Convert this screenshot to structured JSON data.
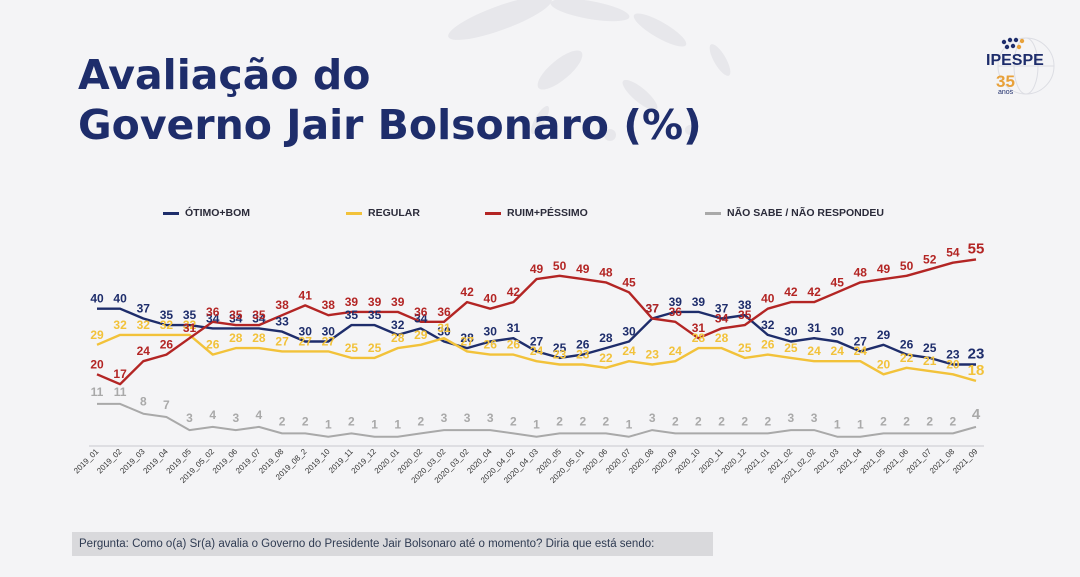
{
  "title": {
    "line1": "Avaliação do",
    "line2": "Governo Jair Bolsonaro (%)"
  },
  "logo": {
    "name": "IPESPE",
    "years": "35",
    "suffix": "anos"
  },
  "footer": {
    "question": "Pergunta: Como o(a) Sr(a) avalia o Governo do Presidente Jair Bolsonaro até o momento? Diria que está sendo:"
  },
  "colors": {
    "otimo_bom": "#1e2d6b",
    "regular": "#f2c23a",
    "ruim_pessimo": "#b32524",
    "nao_sabe": "#a9a9a9"
  },
  "chart_data": {
    "type": "line",
    "title": "",
    "xlabel": "",
    "ylabel": "",
    "ylim": [
      0,
      60
    ],
    "grid": false,
    "legend_position": "top",
    "x": [
      "2019_01",
      "2019_02",
      "2019_03",
      "2019_04",
      "2019_05",
      "2019_05_02",
      "2019_06",
      "2019_07",
      "2019_08",
      "2019_08_2",
      "2019_10",
      "2019_11",
      "2019_12",
      "2020_01",
      "2020_02",
      "2020_03_02",
      "2020_03_02",
      "2020_04",
      "2020_04_02",
      "2020_04_03",
      "2020_05",
      "2020_05_01",
      "2020_06",
      "2020_07",
      "2020_08",
      "2020_09",
      "2020_10",
      "2020_11",
      "2020_12",
      "2021_01",
      "2021_02",
      "2021_02_02",
      "2021_03",
      "2021_04",
      "2021_05",
      "2021_06",
      "2021_07",
      "2021_08",
      "2021_09"
    ],
    "series": [
      {
        "name": "ÓTIMO+BOM",
        "values": [
          40,
          40,
          37,
          35,
          35,
          34,
          34,
          34,
          33,
          30,
          30,
          35,
          35,
          32,
          34,
          30,
          28,
          30,
          31,
          27,
          25,
          26,
          28,
          30,
          37,
          39,
          39,
          37,
          38,
          32,
          30,
          31,
          30,
          27,
          29,
          26,
          25,
          23,
          23
        ]
      },
      {
        "name": "REGULAR",
        "values": [
          29,
          32,
          32,
          32,
          32,
          26,
          28,
          28,
          27,
          27,
          27,
          25,
          25,
          28,
          29,
          31,
          27,
          26,
          26,
          24,
          23,
          23,
          22,
          24,
          23,
          24,
          28,
          28,
          25,
          26,
          25,
          24,
          24,
          24,
          20,
          22,
          21,
          20,
          18
        ]
      },
      {
        "name": "RUIM+PÉSSIMO",
        "values": [
          20,
          17,
          24,
          26,
          31,
          36,
          35,
          35,
          38,
          41,
          38,
          39,
          39,
          39,
          36,
          36,
          42,
          40,
          42,
          49,
          50,
          49,
          48,
          45,
          37,
          36,
          31,
          34,
          35,
          40,
          42,
          42,
          45,
          48,
          49,
          50,
          52,
          54,
          55
        ]
      },
      {
        "name": "NÃO SABE / NÃO RESPONDEU",
        "values": [
          11,
          11,
          8,
          7,
          3,
          4,
          3,
          4,
          2,
          2,
          1,
          2,
          1,
          1,
          2,
          3,
          3,
          3,
          2,
          1,
          2,
          2,
          2,
          1,
          3,
          2,
          2,
          2,
          2,
          2,
          3,
          3,
          1,
          1,
          2,
          2,
          2,
          2,
          4
        ]
      }
    ]
  }
}
